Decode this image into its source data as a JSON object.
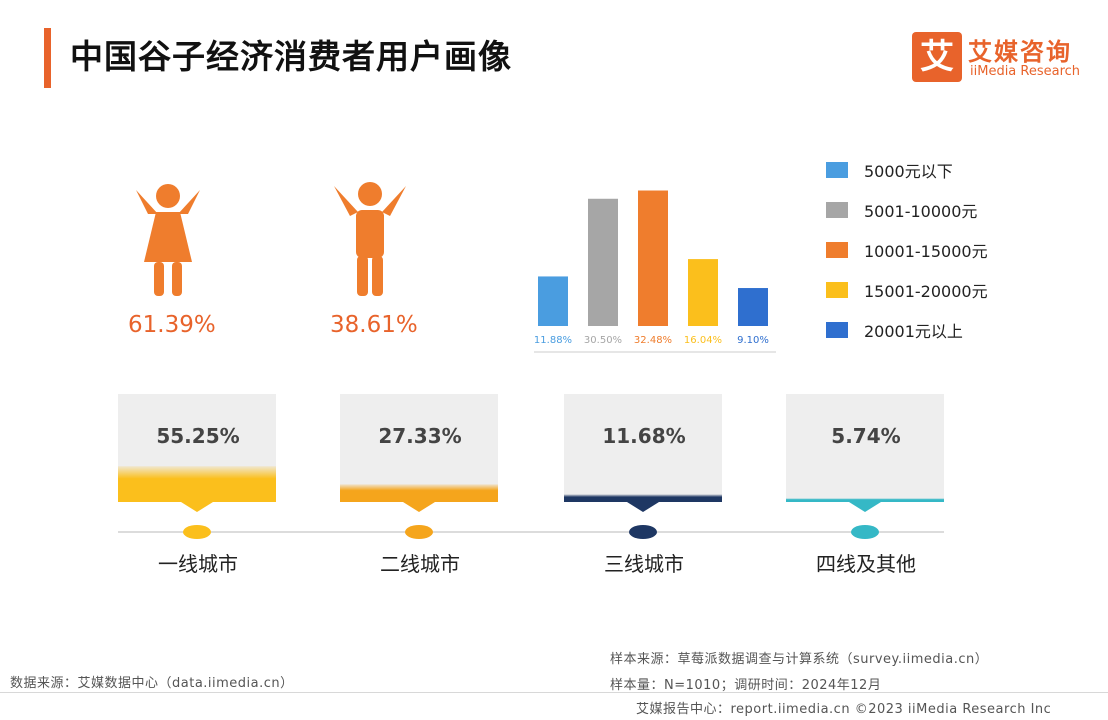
{
  "header": {
    "title": "中国谷子经济消费者用户画像",
    "logo_mark": "艾",
    "logo_cn": "艾媒咨询",
    "logo_en": "iiMedia Research"
  },
  "gender": [
    {
      "icon": "female-person-icon",
      "percent": "61.39%"
    },
    {
      "icon": "male-person-icon",
      "percent": "38.61%"
    }
  ],
  "chart_data": [
    {
      "type": "bar",
      "categories": [
        "5000元以下",
        "5001-10000元",
        "10001-15000元",
        "15001-20000元",
        "20001元以上"
      ],
      "values": [
        11.88,
        30.5,
        32.48,
        16.04,
        9.1
      ],
      "labels": [
        "11.88%",
        "30.50%",
        "32.48%",
        "16.04%",
        "9.10%"
      ],
      "colors": [
        "#4a9de0",
        "#a6a6a6",
        "#ef7d2d",
        "#fbbf1c",
        "#2f6fcf"
      ],
      "legend_position": "right",
      "ylim": [
        0,
        35
      ]
    },
    {
      "type": "bar",
      "categories": [
        "一线城市",
        "二线城市",
        "三线城市",
        "四线及其他"
      ],
      "values": [
        55.25,
        27.33,
        11.68,
        5.74
      ],
      "labels": [
        "55.25%",
        "27.33%",
        "11.68%",
        "5.74%"
      ],
      "colors": [
        "#fbbf1c",
        "#f5a51c",
        "#1e3763",
        "#35b8c6"
      ],
      "ylim": [
        0,
        100
      ]
    }
  ],
  "footer": {
    "source_left": "数据来源：艾媒数据中心（data.iimedia.cn）",
    "sample_source": "样本来源：草莓派数据调查与计算系统（survey.iimedia.cn）",
    "sample_info": "样本量：N=1010；调研时间：2024年12月",
    "bottom_line": "艾媒报告中心：report.iimedia.cn    ©2023  iiMedia Research  Inc"
  }
}
